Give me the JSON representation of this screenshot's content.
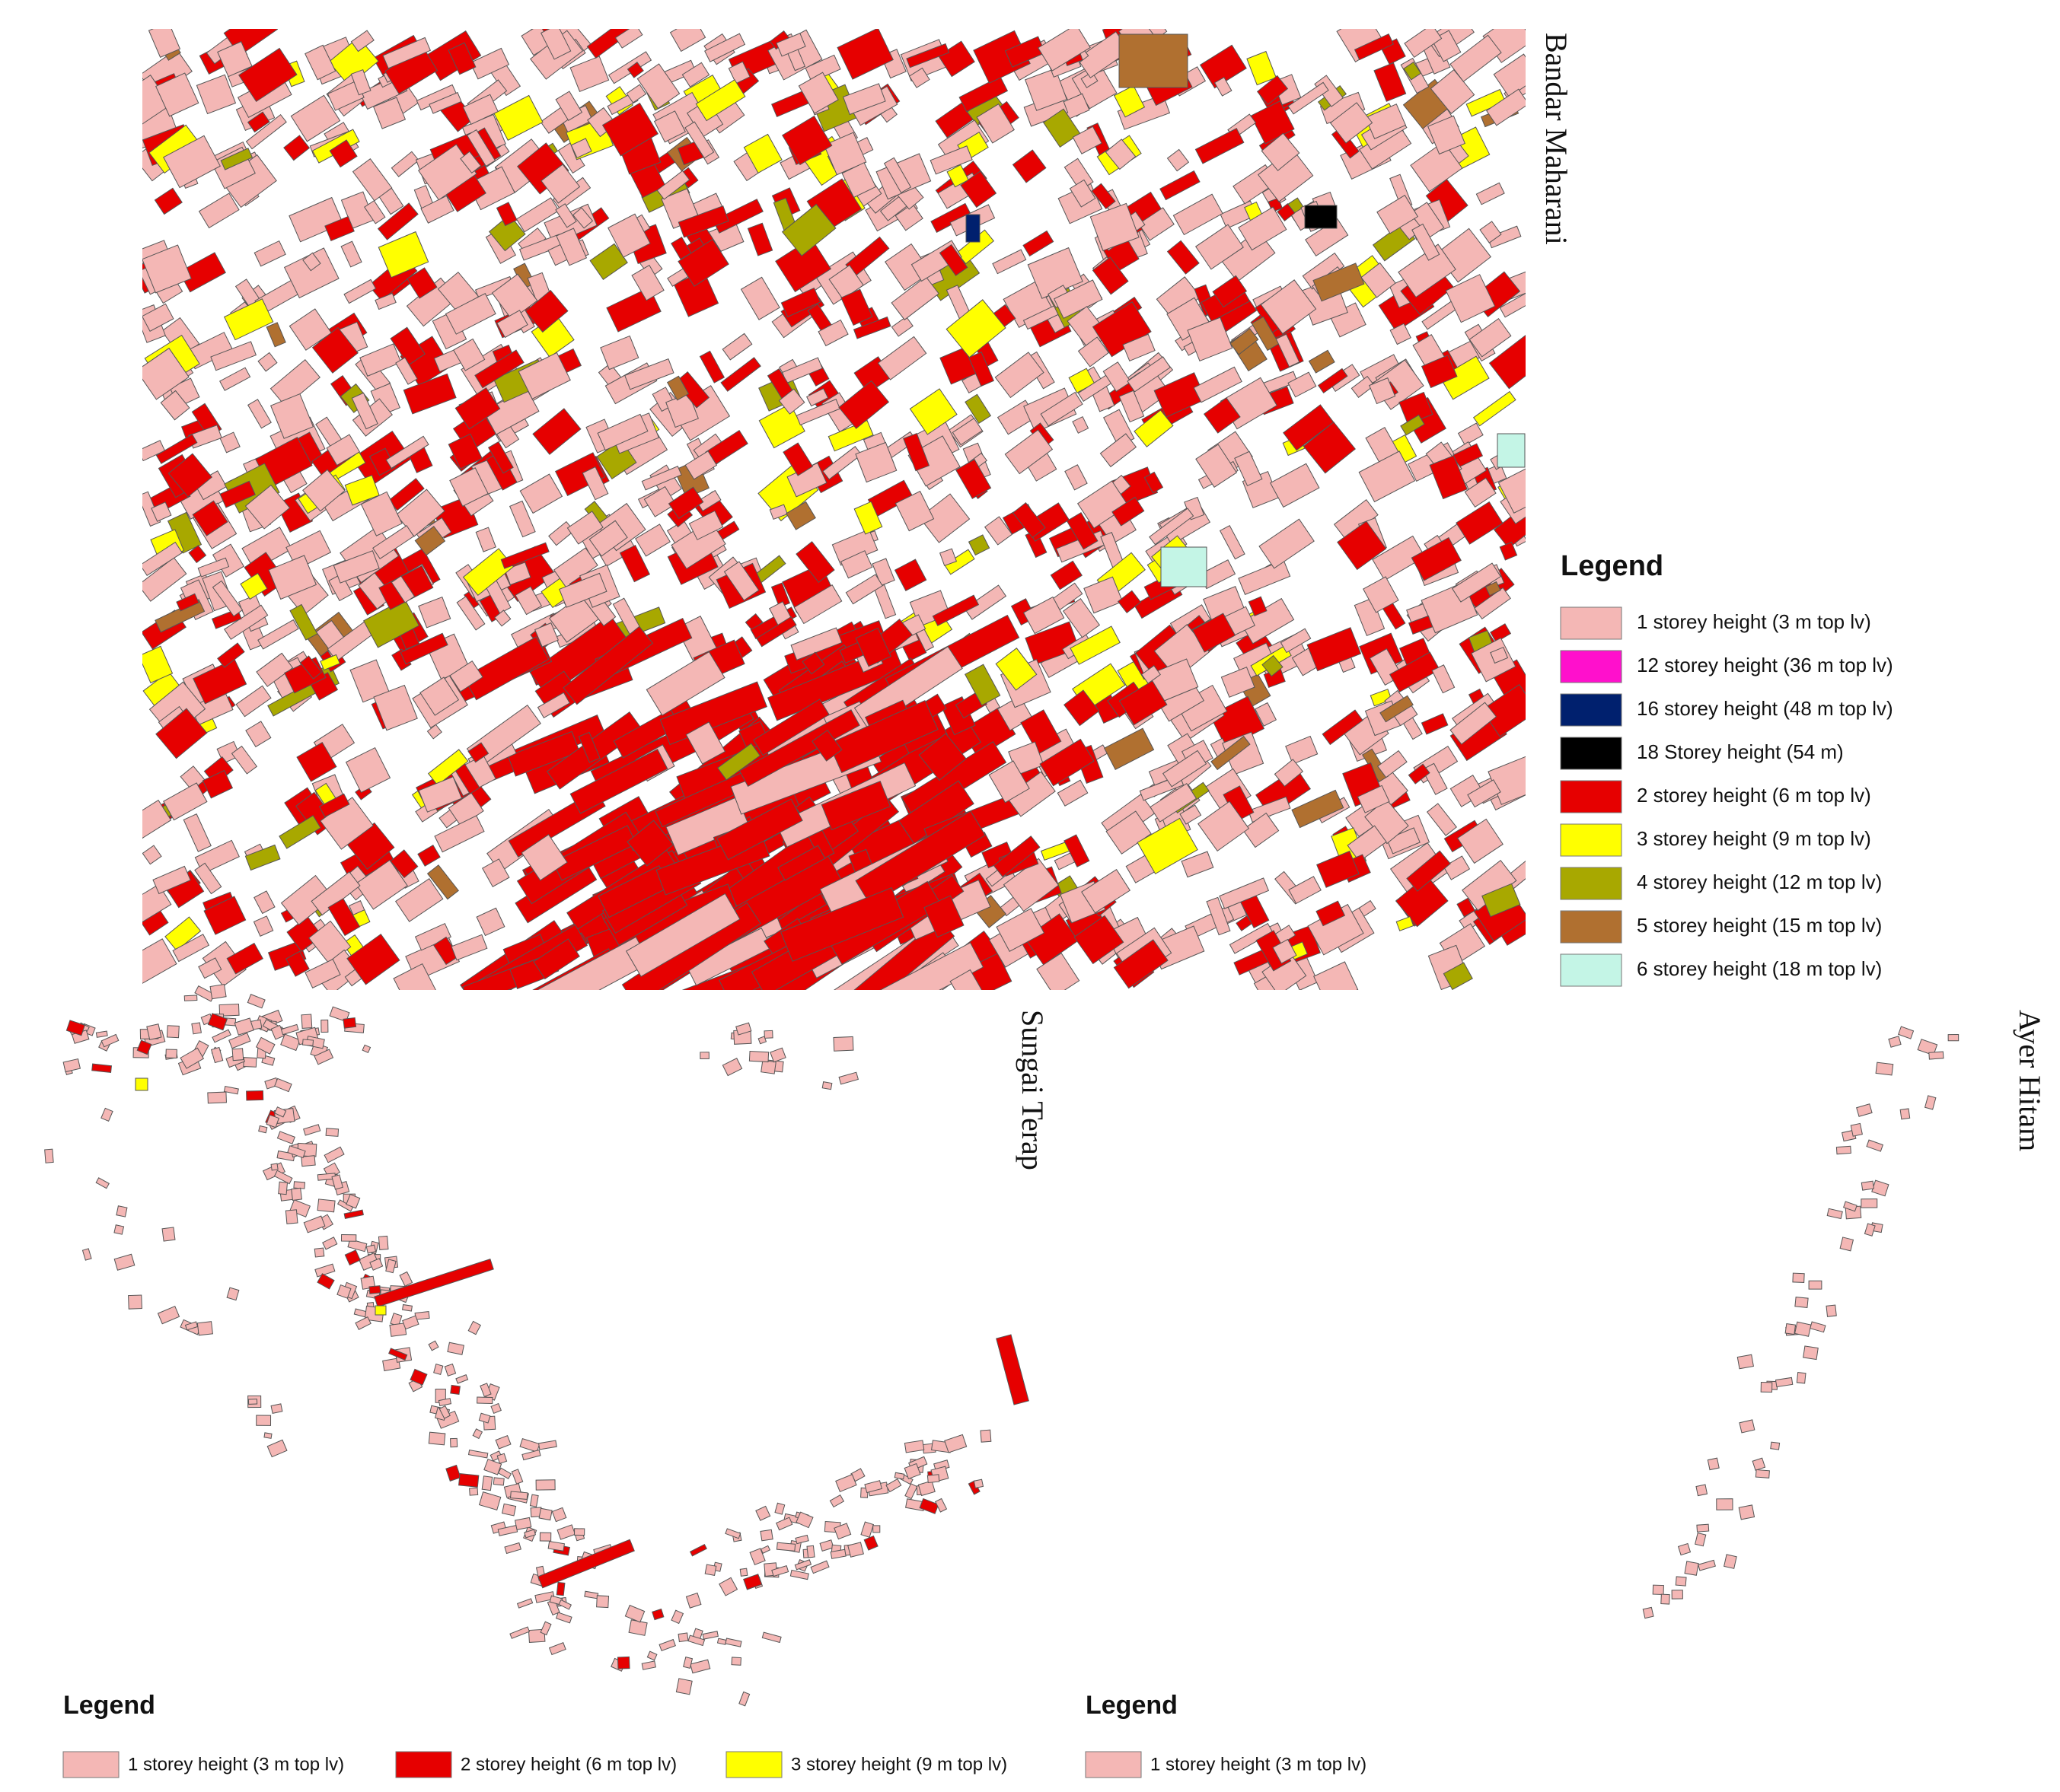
{
  "maps": [
    {
      "label": "Bandar Maharani",
      "legend": {
        "title": "Legend",
        "items": [
          {
            "label": "1 storey height (3 m top lv)",
            "color": "#f4b7b5"
          },
          {
            "label": "12 storey height (36 m top lv)",
            "color": "#ff10cc"
          },
          {
            "label": "16 storey height (48 m top lv)",
            "color": "#00206e"
          },
          {
            "label": "18 Storey height (54 m)",
            "color": "#000000"
          },
          {
            "label": "2 storey height (6 m top lv)",
            "color": "#e60000"
          },
          {
            "label": "3 storey height (9 m top lv)",
            "color": "#ffff00"
          },
          {
            "label": "4 storey height (12 m top lv)",
            "color": "#a8a800"
          },
          {
            "label": "5 storey height (15 m top lv)",
            "color": "#b07030"
          },
          {
            "label": "6 storey height (18 m top lv)",
            "color": "#c4f5e6"
          }
        ]
      }
    },
    {
      "label": "Sungai Terap",
      "legend": {
        "title": "Legend",
        "items": [
          {
            "label": "1 storey height (3 m top lv)",
            "color": "#f4b7b5"
          },
          {
            "label": "2 storey height (6 m top lv)",
            "color": "#e60000"
          },
          {
            "label": "3 storey height (9 m top lv)",
            "color": "#ffff00"
          }
        ]
      }
    },
    {
      "label": "Ayer Hitam",
      "legend": {
        "title": "Legend",
        "items": [
          {
            "label": "1 storey height (3 m top lv)",
            "color": "#f4b7b5"
          }
        ]
      }
    }
  ]
}
